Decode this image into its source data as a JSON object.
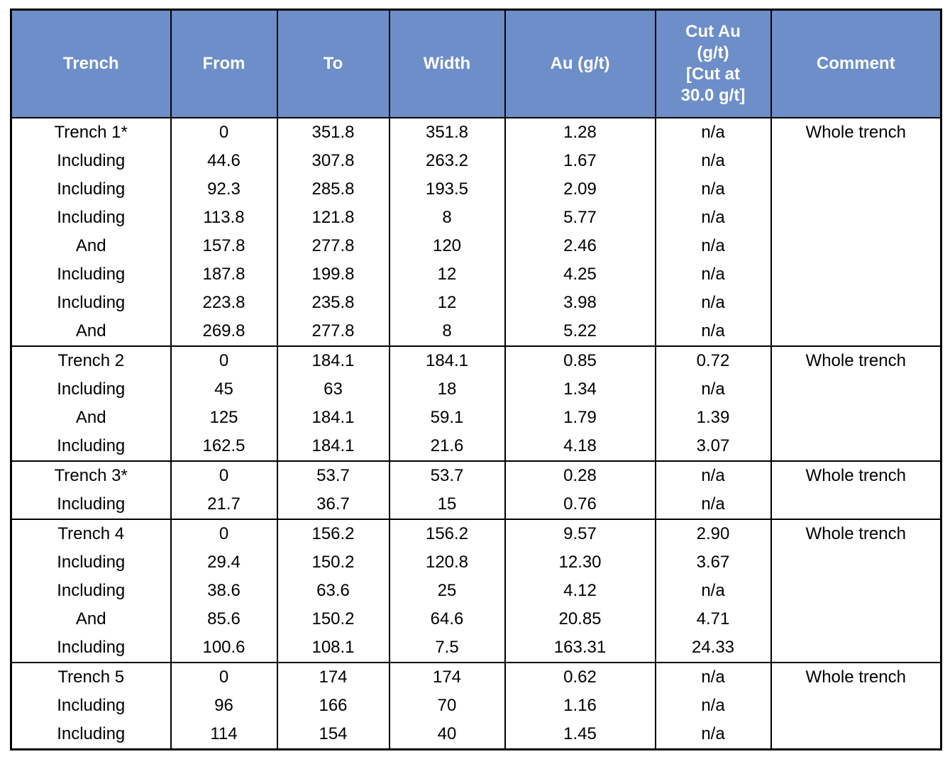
{
  "colors": {
    "header_bg": "#6D8EC8",
    "header_text": "#FFFFFF",
    "border": "#000000",
    "body_text": "#000000"
  },
  "table": {
    "columns": [
      {
        "label": "Trench"
      },
      {
        "label": "From"
      },
      {
        "label": "To"
      },
      {
        "label": "Width"
      },
      {
        "label": "Au (g/t)"
      },
      {
        "label": "Cut Au\n(g/t)\n[Cut at\n30.0 g/t]"
      },
      {
        "label": "Comment"
      }
    ],
    "groups": [
      {
        "rows": [
          {
            "trench": "Trench 1*",
            "bold": true,
            "from": "0",
            "to": "351.8",
            "width": "351.8",
            "au": "1.28",
            "cut_au": "n/a",
            "comment": "Whole trench"
          },
          {
            "trench": "Including",
            "bold": false,
            "from": "44.6",
            "to": "307.8",
            "width": "263.2",
            "au": "1.67",
            "cut_au": "n/a",
            "comment": ""
          },
          {
            "trench": "Including",
            "bold": false,
            "from": "92.3",
            "to": "285.8",
            "width": "193.5",
            "au": "2.09",
            "cut_au": "n/a",
            "comment": ""
          },
          {
            "trench": "Including",
            "bold": false,
            "from": "113.8",
            "to": "121.8",
            "width": "8",
            "au": "5.77",
            "cut_au": "n/a",
            "comment": ""
          },
          {
            "trench": "And",
            "bold": false,
            "from": "157.8",
            "to": "277.8",
            "width": "120",
            "au": "2.46",
            "cut_au": "n/a",
            "comment": ""
          },
          {
            "trench": "Including",
            "bold": false,
            "from": "187.8",
            "to": "199.8",
            "width": "12",
            "au": "4.25",
            "cut_au": "n/a",
            "comment": ""
          },
          {
            "trench": "Including",
            "bold": false,
            "from": "223.8",
            "to": "235.8",
            "width": "12",
            "au": "3.98",
            "cut_au": "n/a",
            "comment": ""
          },
          {
            "trench": "And",
            "bold": false,
            "from": "269.8",
            "to": "277.8",
            "width": "8",
            "au": "5.22",
            "cut_au": "n/a",
            "comment": ""
          }
        ]
      },
      {
        "rows": [
          {
            "trench": "Trench 2",
            "bold": true,
            "from": "0",
            "to": "184.1",
            "width": "184.1",
            "au": "0.85",
            "cut_au": "0.72",
            "comment": "Whole trench"
          },
          {
            "trench": "Including",
            "bold": false,
            "from": "45",
            "to": "63",
            "width": "18",
            "au": "1.34",
            "cut_au": "n/a",
            "comment": ""
          },
          {
            "trench": "And",
            "bold": false,
            "from": "125",
            "to": "184.1",
            "width": "59.1",
            "au": "1.79",
            "cut_au": "1.39",
            "comment": ""
          },
          {
            "trench": "Including",
            "bold": false,
            "from": "162.5",
            "to": "184.1",
            "width": "21.6",
            "au": "4.18",
            "cut_au": "3.07",
            "comment": ""
          }
        ]
      },
      {
        "rows": [
          {
            "trench": "Trench 3*",
            "bold": true,
            "from": "0",
            "to": "53.7",
            "width": "53.7",
            "au": "0.28",
            "cut_au": "n/a",
            "comment": "Whole trench"
          },
          {
            "trench": "Including",
            "bold": false,
            "from": "21.7",
            "to": "36.7",
            "width": "15",
            "au": "0.76",
            "cut_au": "n/a",
            "comment": ""
          }
        ]
      },
      {
        "rows": [
          {
            "trench": "Trench 4",
            "bold": true,
            "from": "0",
            "to": "156.2",
            "width": "156.2",
            "au": "9.57",
            "cut_au": "2.90",
            "comment": "Whole trench"
          },
          {
            "trench": "Including",
            "bold": false,
            "from": "29.4",
            "to": "150.2",
            "width": "120.8",
            "au": "12.30",
            "cut_au": "3.67",
            "comment": ""
          },
          {
            "trench": "Including",
            "bold": false,
            "from": "38.6",
            "to": "63.6",
            "width": "25",
            "au": "4.12",
            "cut_au": "n/a",
            "comment": ""
          },
          {
            "trench": "And",
            "bold": false,
            "from": "85.6",
            "to": "150.2",
            "width": "64.6",
            "au": "20.85",
            "cut_au": "4.71",
            "comment": ""
          },
          {
            "trench": "Including",
            "bold": false,
            "from": "100.6",
            "to": "108.1",
            "width": "7.5",
            "au": "163.31",
            "cut_au": "24.33",
            "comment": ""
          }
        ]
      },
      {
        "rows": [
          {
            "trench": "Trench 5",
            "bold": true,
            "from": "0",
            "to": "174",
            "width": "174",
            "au": "0.62",
            "cut_au": "n/a",
            "comment": "Whole trench"
          },
          {
            "trench": "Including",
            "bold": false,
            "from": "96",
            "to": "166",
            "width": "70",
            "au": "1.16",
            "cut_au": "n/a",
            "comment": ""
          },
          {
            "trench": "Including",
            "bold": false,
            "from": "114",
            "to": "154",
            "width": "40",
            "au": "1.45",
            "cut_au": "n/a",
            "comment": ""
          }
        ]
      }
    ]
  }
}
